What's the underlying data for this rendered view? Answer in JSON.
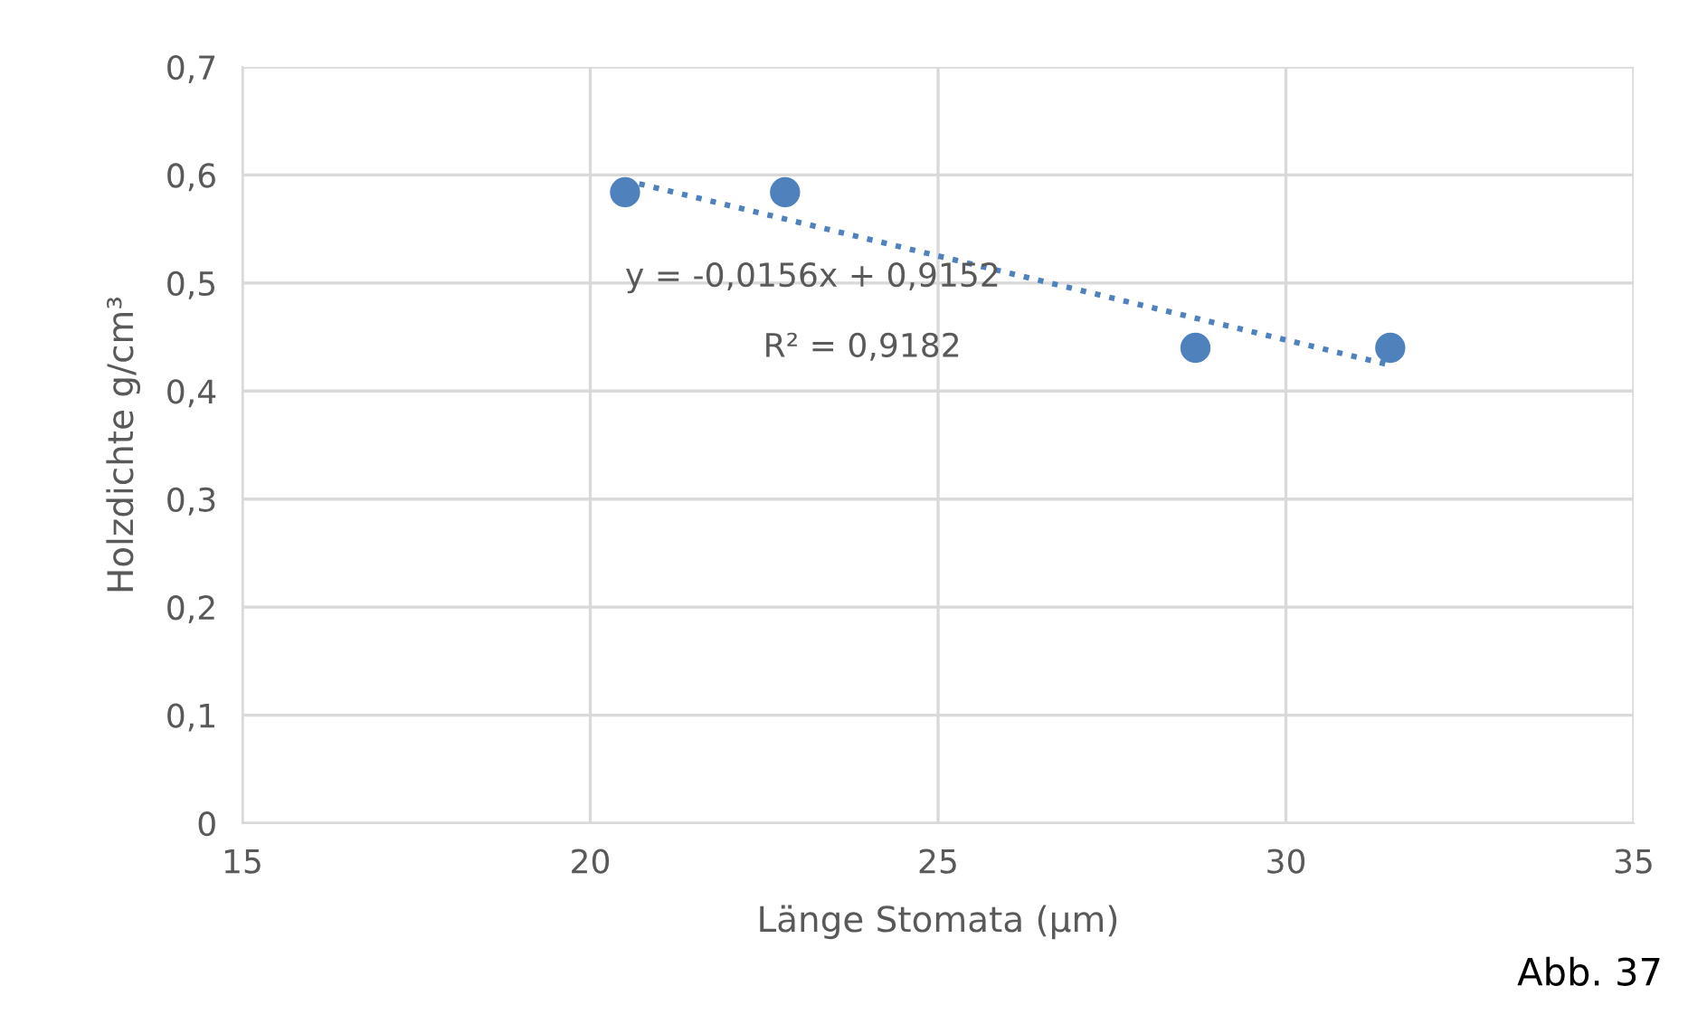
{
  "chart_data": {
    "type": "scatter",
    "xlabel": "Länge Stomata (µm)",
    "ylabel": "Holzdichte g/cm³",
    "xlim": [
      15,
      35
    ],
    "xticks": [
      15,
      20,
      25,
      30,
      35
    ],
    "ylim": [
      0,
      0.7
    ],
    "yticks": [
      0,
      {
        "value": 0.1,
        "label": "0,1"
      },
      {
        "value": 0.2,
        "label": "0,2"
      },
      {
        "value": 0.3,
        "label": "0,3"
      },
      {
        "value": 0.4,
        "label": "0,4"
      },
      {
        "value": 0.5,
        "label": "0,5"
      },
      {
        "value": 0.6,
        "label": "0,6"
      },
      {
        "value": 0.7,
        "label": "0,7"
      }
    ],
    "grid": true,
    "marker": "circle",
    "series": [
      {
        "color": "#4f81bd",
        "x": [
          20.5,
          22.8,
          28.7,
          31.5
        ],
        "values": [
          0.584,
          0.584,
          0.44,
          0.44
        ]
      },
      {
        "type": "line",
        "color": "#4f81bd",
        "line_style": "dotted",
        "marker": "none",
        "x": [
          20.5,
          31.5
        ],
        "values": [
          0.595,
          0.424
        ]
      }
    ],
    "annotations": [
      "y = -0,0156x + 0,9152",
      "R² = 0,9182",
      "Abb. 37"
    ]
  }
}
